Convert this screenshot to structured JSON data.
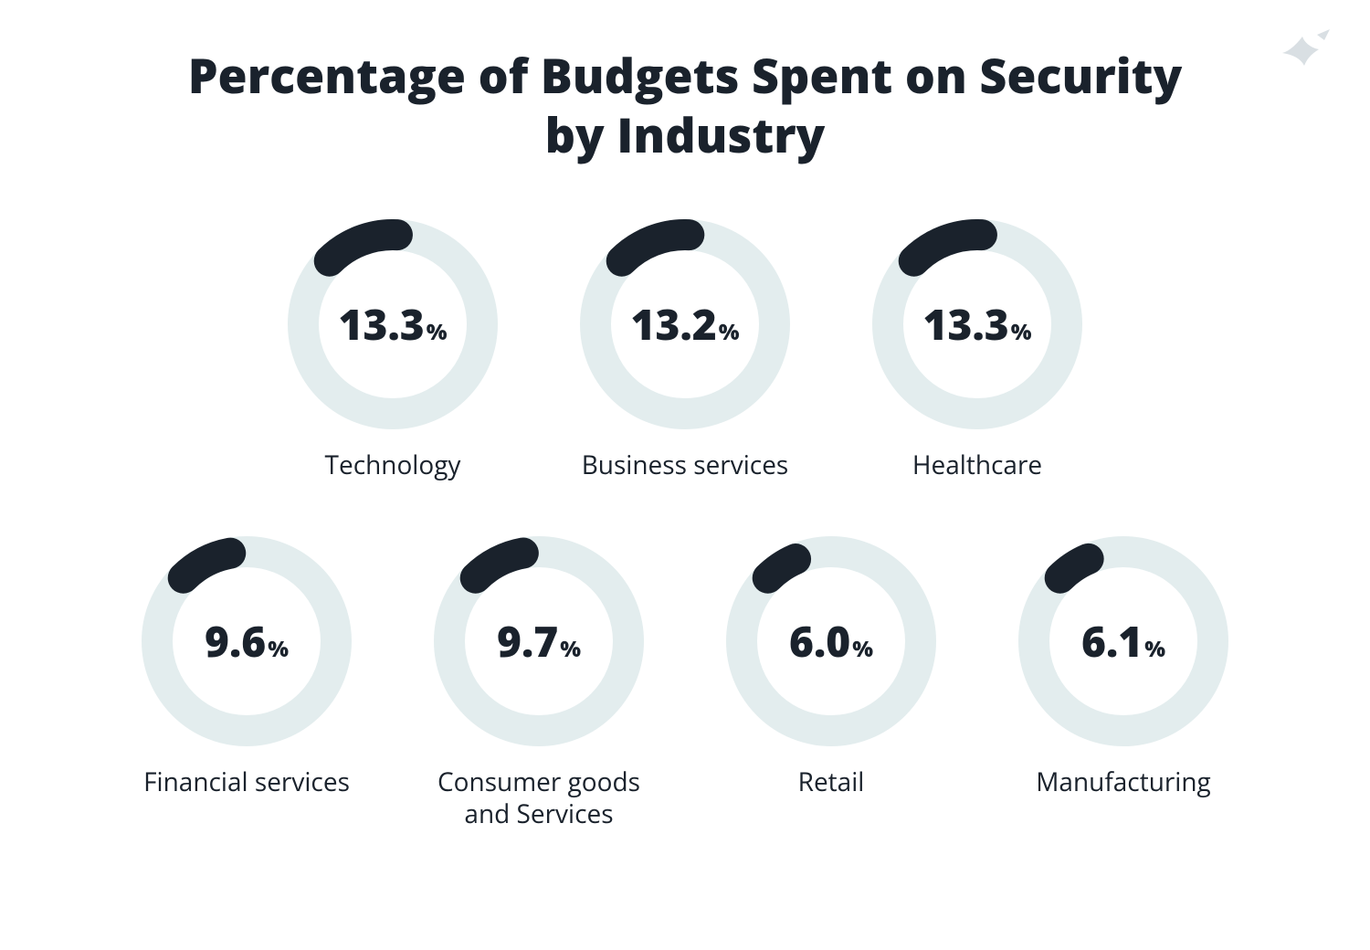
{
  "title": "Percentage of Budgets Spent on Security by Industry",
  "title_fontsize": 52,
  "title_color": "#1a222c",
  "background_color": "#ffffff",
  "logo_color": "#d9dfe3",
  "donut": {
    "size": 230,
    "stroke_width": 34,
    "track_color": "#e3edee",
    "arc_color": "#1a222c",
    "start_angle_deg": -45,
    "value_fontsize": 46,
    "value_color": "#1a222c",
    "pct_symbol": "%",
    "pct_fontsize": 24,
    "label_fontsize": 28,
    "label_color": "#1a222c"
  },
  "row1": [
    {
      "value": 13.3,
      "display": "13.3",
      "label": "Technology"
    },
    {
      "value": 13.2,
      "display": "13.2",
      "label": "Business services"
    },
    {
      "value": 13.3,
      "display": "13.3",
      "label": "Healthcare"
    }
  ],
  "row2": [
    {
      "value": 9.6,
      "display": "9.6",
      "label": "Financial services"
    },
    {
      "value": 9.7,
      "display": "9.7",
      "label": "Consumer goods and Services"
    },
    {
      "value": 6.0,
      "display": "6.0",
      "label": "Retail"
    },
    {
      "value": 6.1,
      "display": "6.1",
      "label": "Manufacturing"
    }
  ]
}
